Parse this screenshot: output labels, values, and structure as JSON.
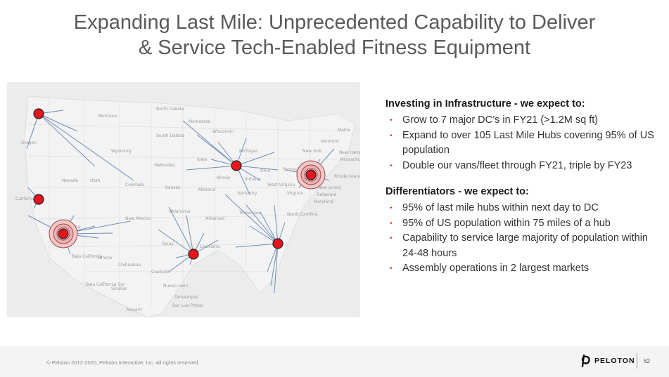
{
  "slide": {
    "title_line1": "Expanding Last Mile: Unprecedented Capability to Deliver",
    "title_line2": "& Service Tech-Enabled Fitness Equipment"
  },
  "map": {
    "route_color": "#6f8fb8",
    "hub_color": "#e8141b",
    "labels": [
      "North Dakota",
      "Montana",
      "Minnesota",
      "South Dakota",
      "Wisconsin",
      "Wyoming",
      "Oregon",
      "Nevada",
      "Utah",
      "Colorado",
      "Nebraska",
      "Iowa",
      "Kansas",
      "Missouri",
      "Illinois",
      "Indiana",
      "Michigan",
      "Ohio",
      "Kentucky",
      "Tennessee",
      "Pennsylvania",
      "Virginia",
      "West Virginia",
      "North Carolina",
      "New York",
      "Vermont",
      "Maine",
      "Massachusetts",
      "New Hampshire",
      "Rhode Island",
      "New Jersey",
      "Delaware",
      "Maryland",
      "Oklahoma",
      "Arkansas",
      "Texas",
      "Louisiana",
      "New Mexico",
      "Baja California",
      "Sonora",
      "Chihuahua",
      "Coahuila",
      "Nuevo León",
      "Tamaulipas",
      "Baja California Sur",
      "Sinaloa",
      "San Luis Potosí",
      "Nayarit",
      "California",
      "Arizona"
    ]
  },
  "infrastructure": {
    "heading": "Investing in Infrastructure - we expect to:",
    "items": [
      "Grow to 7 major DC’s in FY21 (>1.2M sq ft)",
      "Expand to over 105 Last Mile Hubs covering 95% of US population",
      "Double our vans/fleet through FY21, triple by FY23"
    ]
  },
  "differentiators": {
    "heading": "Differentiators - we expect to:",
    "items": [
      "95% of last mile hubs within next day to DC",
      "95% of US population within 75 miles of a hub",
      "Capability to service large majority of population within 24-48 hours",
      "Assembly operations in 2 largest markets"
    ]
  },
  "footer": {
    "copyright": "© Peloton 2012-2020, Peloton Interactive, Inc. All rights reserved.",
    "brand": "PELOTON",
    "page_number": "62"
  }
}
